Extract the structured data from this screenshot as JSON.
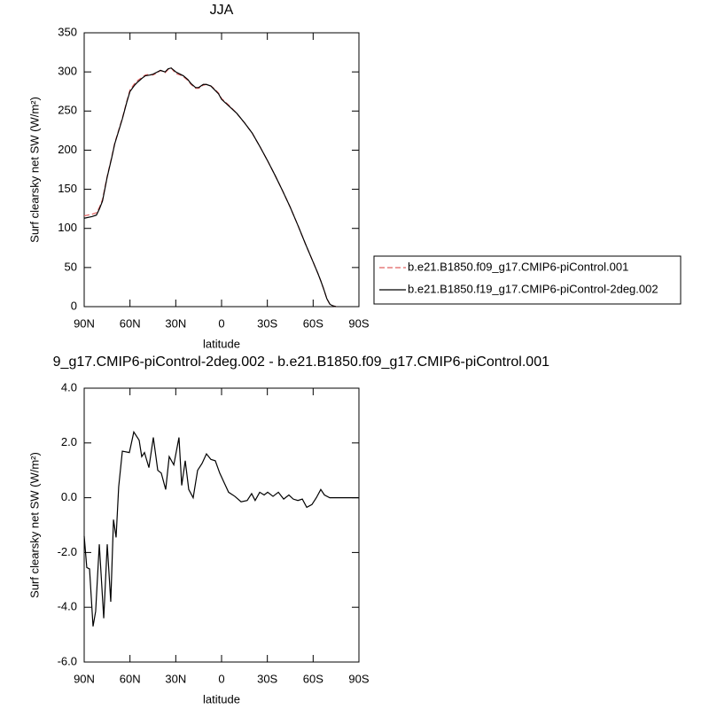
{
  "chart_data": [
    {
      "type": "line",
      "title": "JJA",
      "xlabel": "latitude",
      "ylabel": "Surf clearsky net SW (W/m²)",
      "x": [
        90,
        85,
        82,
        80,
        78,
        75,
        72,
        70,
        65,
        62,
        60,
        57,
        55,
        52,
        50,
        47,
        45,
        42,
        40,
        37,
        35,
        33,
        30,
        27,
        25,
        22,
        20,
        17,
        15,
        12,
        10,
        7,
        5,
        2,
        0,
        -5,
        -10,
        -15,
        -20,
        -25,
        -30,
        -35,
        -40,
        -45,
        -50,
        -55,
        -60,
        -63,
        -65,
        -67,
        -69,
        -71,
        -73,
        -75
      ],
      "series": [
        {
          "name": "b.e21.B1850.f09_g17.CMIP6-piControl.001",
          "color": "#e06060",
          "dashed": true,
          "values": [
            116,
            118,
            120,
            127,
            137,
            166,
            191,
            209,
            241,
            263,
            277,
            285,
            289,
            293,
            296,
            297,
            296,
            299,
            302,
            299,
            303,
            305,
            298,
            296,
            294,
            289,
            284,
            279,
            279,
            283,
            284,
            282,
            279,
            273,
            266,
            257,
            247,
            235,
            222,
            205,
            187,
            168,
            148,
            127,
            104,
            80,
            57,
            43,
            33,
            22,
            10,
            3,
            1,
            0
          ]
        },
        {
          "name": "b.e21.B1850.f19_g17.CMIP6-piControl-2deg.002",
          "color": "#000000",
          "dashed": false,
          "values": [
            113,
            115,
            117,
            125,
            135,
            165,
            190,
            208,
            240,
            262,
            275,
            283,
            287,
            292,
            295,
            296,
            297,
            300,
            302,
            300,
            304,
            305,
            300,
            297,
            295,
            290,
            285,
            280,
            280,
            284,
            284,
            282,
            278,
            272,
            265,
            256,
            247,
            235,
            222,
            205,
            187,
            168,
            148,
            127,
            104,
            80,
            57,
            43,
            33,
            22,
            10,
            3,
            1,
            0
          ]
        }
      ],
      "xlim": [
        90,
        -90
      ],
      "xticks": [
        {
          "value": 90,
          "label": "90N"
        },
        {
          "value": 60,
          "label": "60N"
        },
        {
          "value": 30,
          "label": "30N"
        },
        0,
        {
          "value": -30,
          "label": "30S"
        },
        {
          "value": -60,
          "label": "60S"
        },
        {
          "value": -90,
          "label": "90S"
        }
      ],
      "ylim": [
        0,
        350
      ],
      "yticks": [
        0,
        50,
        100,
        150,
        200,
        250,
        300,
        350
      ],
      "legend": "right"
    },
    {
      "type": "line",
      "title": "9_g17.CMIP6-piControl-2deg.002 - b.e21.B1850.f09_g17.CMIP6-piControl.001",
      "xlabel": "latitude",
      "ylabel": "Surf clearsky net SW (W/m²)",
      "x": [
        90,
        88.3,
        86.5,
        84.2,
        82.5,
        80.1,
        77.2,
        74.9,
        72.6,
        70.8,
        69.1,
        67.4,
        65,
        60.4,
        57.5,
        54,
        52.3,
        50.5,
        47.6,
        44.7,
        41.8,
        39.5,
        36.6,
        34.3,
        31.3,
        27.9,
        26.1,
        23.8,
        21.5,
        18.6,
        15.7,
        12.8,
        9.9,
        7,
        4.1,
        1.2,
        -1.7,
        -4.6,
        -8.7,
        -12.8,
        -16.8,
        -19.7,
        -22,
        -25,
        -27.9,
        -30.2,
        -33.7,
        -37.2,
        -40.7,
        -44.1,
        -47,
        -50,
        -52.9,
        -55.8,
        -59.2,
        -62.1,
        -65,
        -67.4,
        -70.9,
        -75.5,
        -90
      ],
      "values": [
        -1.4,
        -2.55,
        -2.6,
        -4.7,
        -4.15,
        -1.7,
        -4.4,
        -1.7,
        -3.8,
        -0.8,
        -1.45,
        0.4,
        1.7,
        1.65,
        2.4,
        2.1,
        1.5,
        1.65,
        1.1,
        2.2,
        1.0,
        0.9,
        0.3,
        1.5,
        1.2,
        2.2,
        0.45,
        1.35,
        0.3,
        0,
        1.0,
        1.25,
        1.6,
        1.4,
        1.35,
        0.9,
        0.55,
        0.2,
        0.05,
        -0.15,
        -0.1,
        0.15,
        -0.1,
        0.2,
        0.1,
        0.2,
        0.05,
        0.2,
        -0.05,
        0.1,
        -0.05,
        -0.1,
        -0.05,
        -0.35,
        -0.25,
        0,
        0.3,
        0.1,
        0,
        0,
        0
      ],
      "color": "#000000",
      "xlim": [
        90,
        -90
      ],
      "xticks": [
        {
          "value": 90,
          "label": "90N"
        },
        {
          "value": 60,
          "label": "60N"
        },
        {
          "value": 30,
          "label": "30N"
        },
        0,
        {
          "value": -30,
          "label": "30S"
        },
        {
          "value": -60,
          "label": "60S"
        },
        {
          "value": -90,
          "label": "90S"
        }
      ],
      "ylim": [
        -6,
        4
      ],
      "yticks": [
        {
          "value": -6,
          "label": "-6.0"
        },
        {
          "value": -4,
          "label": "-4.0"
        },
        {
          "value": -2,
          "label": "-2.0"
        },
        {
          "value": 0,
          "label": "0.0"
        },
        {
          "value": 2,
          "label": "2.0"
        },
        {
          "value": 4,
          "label": "4.0"
        }
      ]
    }
  ]
}
